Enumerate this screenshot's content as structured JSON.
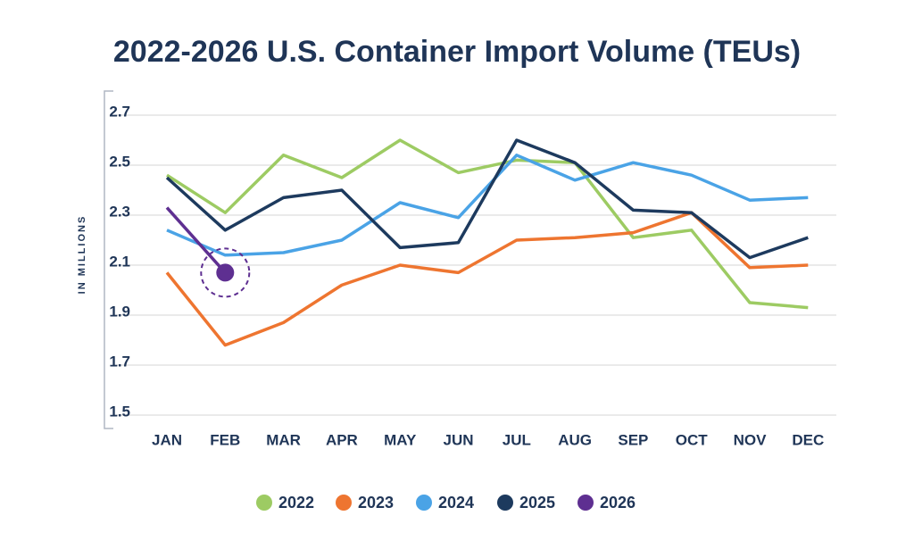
{
  "chart_data": {
    "type": "line",
    "title": "2022-2026 U.S. Container Import Volume (TEUs)",
    "y_label": "IN MILLIONS",
    "categories": [
      "JAN",
      "FEB",
      "MAR",
      "APR",
      "MAY",
      "JUN",
      "JUL",
      "AUG",
      "SEP",
      "OCT",
      "NOV",
      "DEC"
    ],
    "series": [
      {
        "name": "2022",
        "color": "#9dcb63",
        "values": [
          2.46,
          2.31,
          2.54,
          2.45,
          2.6,
          2.47,
          2.52,
          2.51,
          2.21,
          2.24,
          1.95,
          1.93
        ]
      },
      {
        "name": "2023",
        "color": "#ee7530",
        "values": [
          2.07,
          1.78,
          1.87,
          2.02,
          2.1,
          2.07,
          2.2,
          2.21,
          2.23,
          2.31,
          2.09,
          2.1
        ]
      },
      {
        "name": "2024",
        "color": "#4aa3e6",
        "values": [
          2.24,
          2.14,
          2.15,
          2.2,
          2.35,
          2.29,
          2.54,
          2.44,
          2.51,
          2.46,
          2.36,
          2.37
        ]
      },
      {
        "name": "2025",
        "color": "#1d3a5e",
        "values": [
          2.45,
          2.24,
          2.37,
          2.4,
          2.17,
          2.19,
          2.6,
          2.51,
          2.32,
          2.31,
          2.13,
          2.21
        ]
      },
      {
        "name": "2026",
        "color": "#5e2f91",
        "values": [
          2.33,
          2.07,
          null,
          null,
          null,
          null,
          null,
          null,
          null,
          null,
          null,
          null
        ]
      }
    ],
    "ylim": [
      1.5,
      2.7
    ],
    "yticks": [
      1.5,
      1.7,
      1.9,
      2.1,
      2.3,
      2.5,
      2.7
    ],
    "grid": true
  }
}
